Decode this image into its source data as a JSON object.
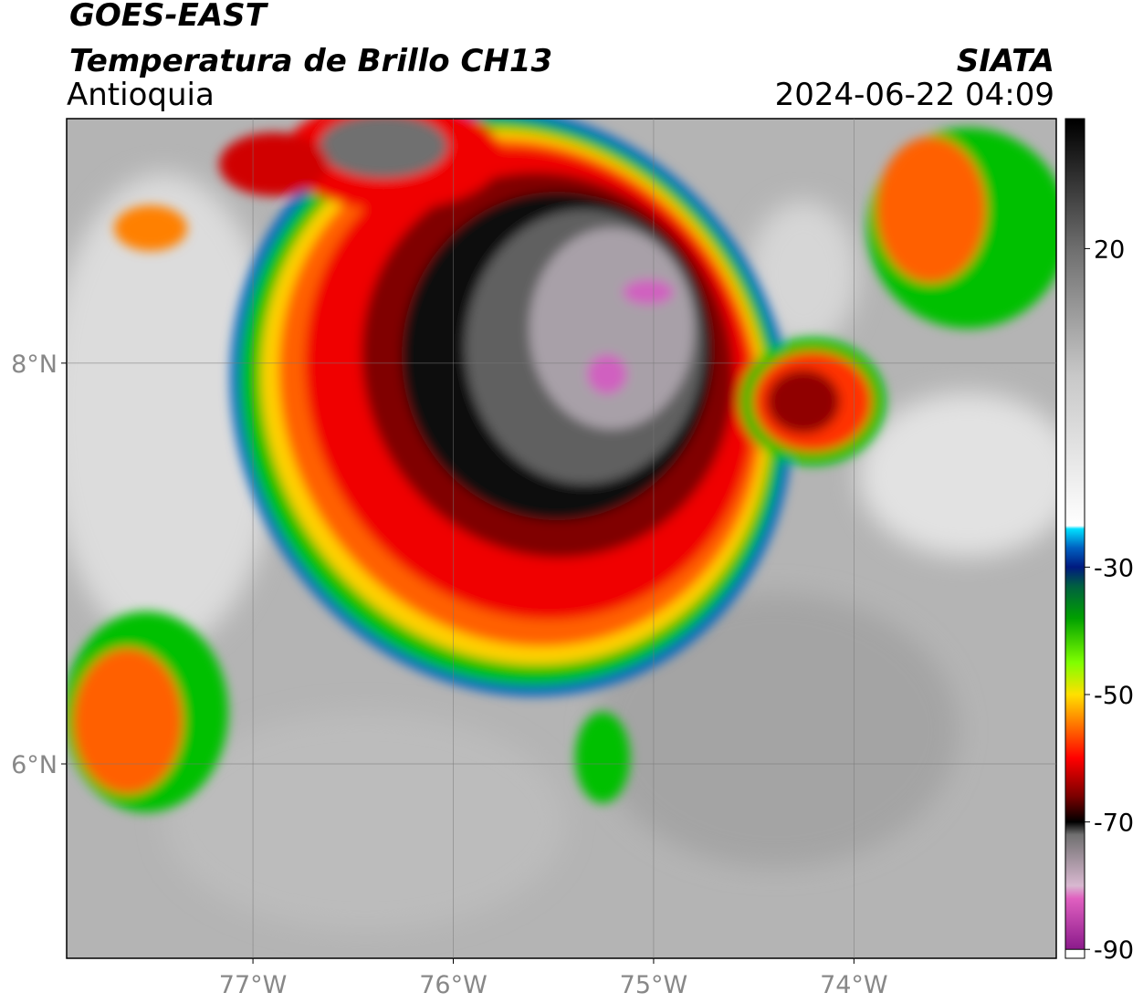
{
  "map": {
    "title": "GOES-EAST",
    "subtitle": "Temperatura de Brillo CH13",
    "region": "Antioquia",
    "source": "SIATA",
    "datetime": "2024-06-22 04:09",
    "xlim": [
      -77.93,
      -72.99
    ],
    "ylim": [
      5.03,
      9.22
    ],
    "xticks": [
      {
        "value": -77,
        "label": "77°W"
      },
      {
        "value": -76,
        "label": "76°W"
      },
      {
        "value": -75,
        "label": "75°W"
      },
      {
        "value": -74,
        "label": "74°W"
      }
    ],
    "yticks": [
      {
        "value": 8,
        "label": "8°N"
      },
      {
        "value": 6,
        "label": "6°N"
      }
    ],
    "grid": true,
    "colorbar": {
      "clim": [
        -91.4,
        40.4
      ],
      "ticks": [
        20,
        -30,
        -50,
        -70,
        -90
      ],
      "colorscale": [
        {
          "value": -90,
          "color": "#8b1a8b"
        },
        {
          "value": -82,
          "color": "#e060c0"
        },
        {
          "value": -80,
          "color": "#d8b8d0"
        },
        {
          "value": -72,
          "color": "#707070"
        },
        {
          "value": -70,
          "color": "#000000"
        },
        {
          "value": -66,
          "color": "#7a0000"
        },
        {
          "value": -60,
          "color": "#ff0000"
        },
        {
          "value": -55,
          "color": "#ff7000"
        },
        {
          "value": -50,
          "color": "#ffe000"
        },
        {
          "value": -45,
          "color": "#80ff00"
        },
        {
          "value": -38,
          "color": "#00a000"
        },
        {
          "value": -33,
          "color": "#006040"
        },
        {
          "value": -30,
          "color": "#001a80"
        },
        {
          "value": -27,
          "color": "#0060c0"
        },
        {
          "value": -24,
          "color": "#00e0ff"
        },
        {
          "value": -23.5,
          "color": "#ffffff"
        },
        {
          "value": 0,
          "color": "#c8c8c8"
        },
        {
          "value": 20,
          "color": "#6e6e6e"
        },
        {
          "value": 40,
          "color": "#000000"
        }
      ]
    }
  }
}
